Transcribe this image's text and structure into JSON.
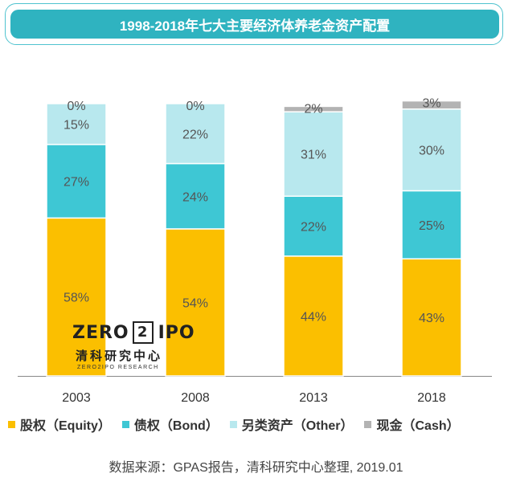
{
  "chart_data": {
    "type": "stacked-bar",
    "title": "1998-2018年七大主要经济体养老金资产配置",
    "categories": [
      "2003",
      "2008",
      "2013",
      "2018"
    ],
    "series": [
      {
        "name": "股权（Equity）",
        "color": "#fbbf00",
        "values": [
          58,
          54,
          44,
          43
        ]
      },
      {
        "name": "债权（Bond）",
        "color": "#3ec7d4",
        "values": [
          27,
          24,
          22,
          25
        ]
      },
      {
        "name": "另类资产（Other）",
        "color": "#b8e8ee",
        "values": [
          15,
          22,
          31,
          30
        ]
      },
      {
        "name": "现金（Cash）",
        "color": "#b3b3b3",
        "values": [
          0,
          0,
          2,
          3
        ]
      }
    ],
    "ylim": [
      0,
      100
    ],
    "source": "数据来源：GPAS报告，清科研究中心整理, 2019.01"
  },
  "logo": {
    "left_text": "ZERO",
    "box_text": "2",
    "right_text": "IPO",
    "chinese": "清科研究中心",
    "sub": "ZERO2IPO RESEARCH"
  }
}
